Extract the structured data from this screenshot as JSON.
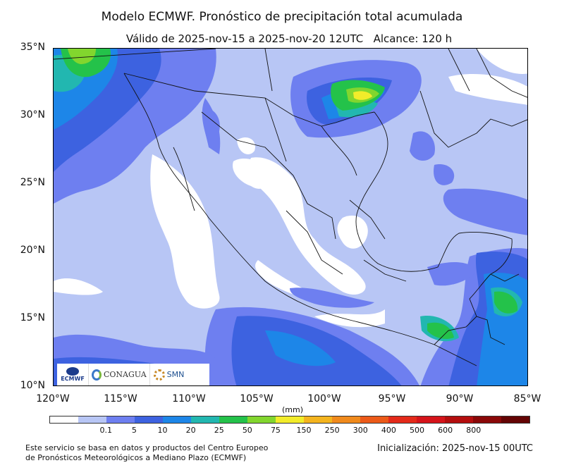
{
  "title": "Modelo ECMWF. Pronóstico de precipitación total acumulada",
  "subtitle": "Válido de 2025-nov-15 a 2025-nov-20 12UTC   Alcance: 120 h",
  "lat_labels": [
    "35°N",
    "30°N",
    "25°N",
    "20°N",
    "15°N",
    "10°N"
  ],
  "lon_labels": [
    "120°W",
    "115°W",
    "110°W",
    "105°W",
    "100°W",
    "95°W",
    "90°W",
    "85°W"
  ],
  "unit": "(mm)",
  "colorbar": {
    "colors": [
      "#ffffff",
      "#b8c6f5",
      "#6e7ff0",
      "#3d62e0",
      "#1d86e8",
      "#22b7b0",
      "#24c24a",
      "#82d62e",
      "#f2ec2a",
      "#f4b41e",
      "#f08a1c",
      "#ec5a19",
      "#e42a1a",
      "#d5141a",
      "#b40e0e",
      "#8a0808",
      "#640404"
    ],
    "labels": [
      "0.1",
      "5",
      "10",
      "20",
      "25",
      "50",
      "75",
      "150",
      "250",
      "300",
      "400",
      "500",
      "600",
      "800"
    ]
  },
  "footer_left_line1": "Este servicio se basa en datos y productos del Centro Europeo",
  "footer_left_line2": "de Pronósticos Meteorológicos a Mediano Plazo (ECMWF)",
  "footer_right": "Inicialización: 2025-nov-15 00UTC",
  "logos": {
    "ecmwf": "ECMWF",
    "conagua": "CONAGUA",
    "smn": "SMN"
  }
}
